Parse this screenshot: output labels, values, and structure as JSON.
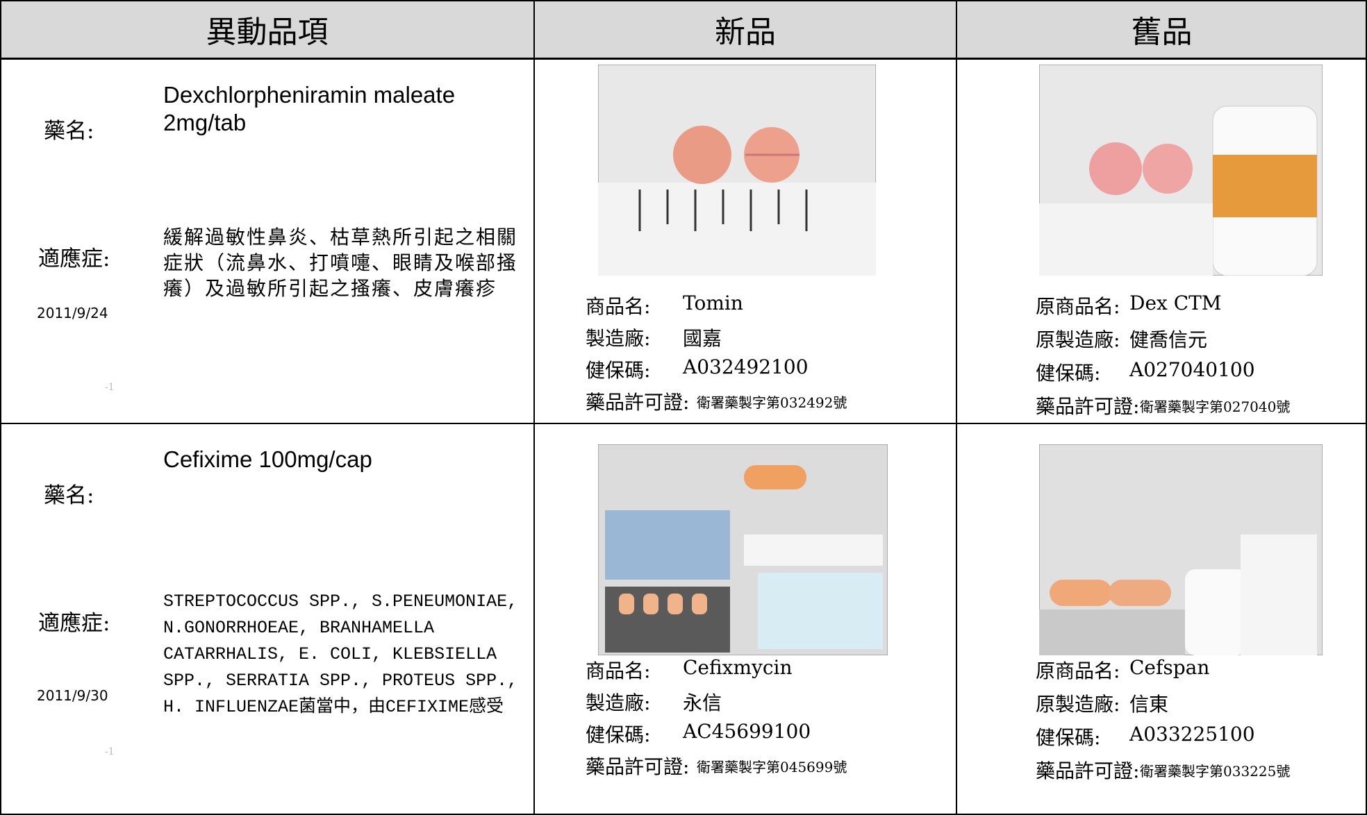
{
  "header": {
    "columns": [
      "異動品項",
      "新品",
      "舊品"
    ]
  },
  "rows": [
    {
      "drug_label": "藥名:",
      "drug_name": "Dexchlorpheniramin maleate 2mg/tab",
      "indication_label": "適應症:",
      "indication": "緩解過敏性鼻炎、枯草熱所引起之相關症狀（流鼻水、打噴嚏、眼睛及喉部搔癢）及過敏所引起之搔癢、皮膚癢疹",
      "date": "2011/9/24",
      "note": "-1",
      "new": [
        {
          "label": "商品名:",
          "value": "Tomin"
        },
        {
          "label": "製造廠:",
          "value": "國嘉"
        },
        {
          "label": "健保碼:",
          "value": "A032492100"
        },
        {
          "label": "藥品許可證:",
          "value": "衛署藥製字第032492號"
        }
      ],
      "old": [
        {
          "label": "原商品名:",
          "value": "Dex CTM"
        },
        {
          "label": "原製造廠:",
          "value": "健喬信元"
        },
        {
          "label": "健保碼:",
          "value": "A027040100"
        },
        {
          "label": "藥品許可證:",
          "value": "衛署藥製字第027040號"
        }
      ]
    },
    {
      "drug_label": "藥名:",
      "drug_name": "Cefixime 100mg/cap",
      "indication_label": "適應症:",
      "indication": "STREPTOCOCCUS SPP., S.PENEUMONIAE, N.GONORRHOEAE, BRANHAMELLA CATARRHALIS, E. COLI, KLEBSIELLA SPP., SERRATIA SPP., PROTEUS SPP., H. INFLUENZAE菌當中，由CEFIXIME感受",
      "date": "2011/9/30",
      "note": "-1",
      "new": [
        {
          "label": "商品名:",
          "value": "Cefixmycin"
        },
        {
          "label": "製造廠:",
          "value": "永信"
        },
        {
          "label": "健保碼:",
          "value": "AC45699100"
        },
        {
          "label": "藥品許可證:",
          "value": "衛署藥製字第045699號"
        }
      ],
      "old": [
        {
          "label": "原商品名:",
          "value": "Cefspan"
        },
        {
          "label": "原製造廠:",
          "value": "信東"
        },
        {
          "label": "健保碼:",
          "value": "A033225100"
        },
        {
          "label": "藥品許可證:",
          "value": "衛署藥製字第033225號"
        }
      ]
    }
  ]
}
